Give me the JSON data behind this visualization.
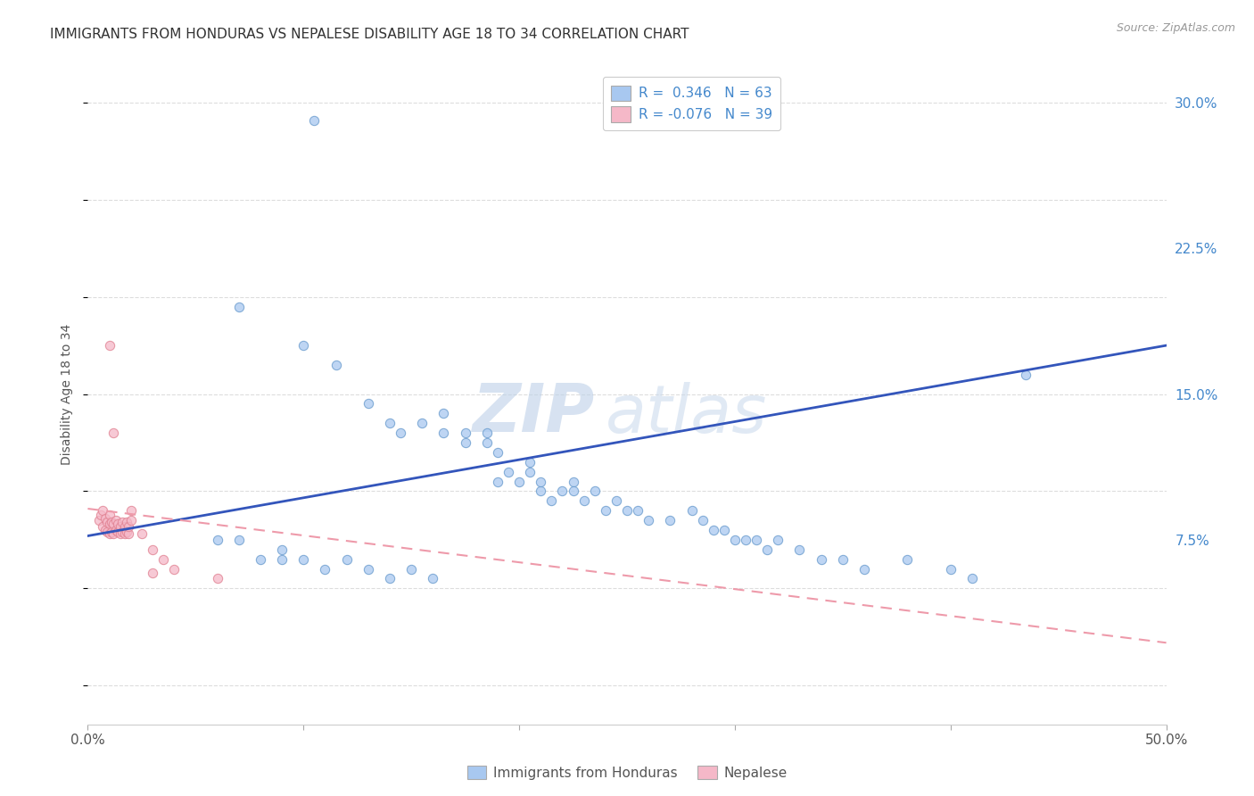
{
  "title": "IMMIGRANTS FROM HONDURAS VS NEPALESE DISABILITY AGE 18 TO 34 CORRELATION CHART",
  "source": "Source: ZipAtlas.com",
  "ylabel": "Disability Age 18 to 34",
  "xlim": [
    0.0,
    0.5
  ],
  "ylim": [
    -0.02,
    0.32
  ],
  "xticks": [
    0.0,
    0.1,
    0.2,
    0.3,
    0.4,
    0.5
  ],
  "xtick_labels": [
    "0.0%",
    "",
    "",
    "",
    "",
    "50.0%"
  ],
  "ytick_labels_right": [
    "7.5%",
    "15.0%",
    "22.5%",
    "30.0%"
  ],
  "yticks_right": [
    0.075,
    0.15,
    0.225,
    0.3
  ],
  "blue_color": "#A8C8F0",
  "blue_edge_color": "#6699CC",
  "pink_color": "#F5B8C8",
  "pink_edge_color": "#E08090",
  "blue_line_color": "#3355BB",
  "pink_line_color": "#EE9AAA",
  "legend_R_blue": "0.346",
  "legend_N_blue": "63",
  "legend_R_pink": "-0.076",
  "legend_N_pink": "39",
  "watermark_zip": "ZIP",
  "watermark_atlas": "atlas",
  "legend_label_blue": "Immigrants from Honduras",
  "legend_label_pink": "Nepalese",
  "blue_scatter_x": [
    0.105,
    0.07,
    0.1,
    0.115,
    0.13,
    0.14,
    0.145,
    0.155,
    0.165,
    0.165,
    0.175,
    0.175,
    0.185,
    0.185,
    0.19,
    0.19,
    0.195,
    0.2,
    0.205,
    0.205,
    0.21,
    0.21,
    0.215,
    0.22,
    0.225,
    0.225,
    0.23,
    0.235,
    0.24,
    0.245,
    0.25,
    0.255,
    0.26,
    0.27,
    0.28,
    0.285,
    0.29,
    0.295,
    0.3,
    0.305,
    0.31,
    0.315,
    0.32,
    0.33,
    0.34,
    0.35,
    0.36,
    0.38,
    0.4,
    0.41,
    0.435,
    0.06,
    0.07,
    0.08,
    0.09,
    0.09,
    0.1,
    0.11,
    0.12,
    0.13,
    0.14,
    0.15,
    0.16
  ],
  "blue_scatter_y": [
    0.291,
    0.195,
    0.175,
    0.165,
    0.145,
    0.135,
    0.13,
    0.135,
    0.14,
    0.13,
    0.125,
    0.13,
    0.13,
    0.125,
    0.105,
    0.12,
    0.11,
    0.105,
    0.11,
    0.115,
    0.1,
    0.105,
    0.095,
    0.1,
    0.105,
    0.1,
    0.095,
    0.1,
    0.09,
    0.095,
    0.09,
    0.09,
    0.085,
    0.085,
    0.09,
    0.085,
    0.08,
    0.08,
    0.075,
    0.075,
    0.075,
    0.07,
    0.075,
    0.07,
    0.065,
    0.065,
    0.06,
    0.065,
    0.06,
    0.055,
    0.16,
    0.075,
    0.075,
    0.065,
    0.07,
    0.065,
    0.065,
    0.06,
    0.065,
    0.06,
    0.055,
    0.06,
    0.055
  ],
  "pink_scatter_x": [
    0.005,
    0.006,
    0.007,
    0.007,
    0.008,
    0.008,
    0.009,
    0.009,
    0.01,
    0.01,
    0.01,
    0.011,
    0.011,
    0.012,
    0.012,
    0.013,
    0.013,
    0.014,
    0.014,
    0.015,
    0.015,
    0.016,
    0.016,
    0.017,
    0.017,
    0.018,
    0.018,
    0.019,
    0.019,
    0.02,
    0.025,
    0.03,
    0.035,
    0.04,
    0.01,
    0.012,
    0.02,
    0.03,
    0.06
  ],
  "pink_scatter_y": [
    0.085,
    0.088,
    0.082,
    0.09,
    0.08,
    0.086,
    0.079,
    0.084,
    0.078,
    0.083,
    0.088,
    0.079,
    0.084,
    0.078,
    0.083,
    0.08,
    0.085,
    0.079,
    0.083,
    0.078,
    0.082,
    0.079,
    0.084,
    0.078,
    0.082,
    0.079,
    0.084,
    0.078,
    0.082,
    0.085,
    0.078,
    0.07,
    0.065,
    0.06,
    0.175,
    0.13,
    0.09,
    0.058,
    0.055
  ],
  "blue_trend_x": [
    0.0,
    0.5
  ],
  "blue_trend_y_start": 0.077,
  "blue_trend_y_end": 0.175,
  "pink_trend_x": [
    0.0,
    0.5
  ],
  "pink_trend_y_start": 0.091,
  "pink_trend_y_end": 0.022,
  "grid_color": "#DDDDDD",
  "title_fontsize": 11,
  "axis_label_fontsize": 10
}
